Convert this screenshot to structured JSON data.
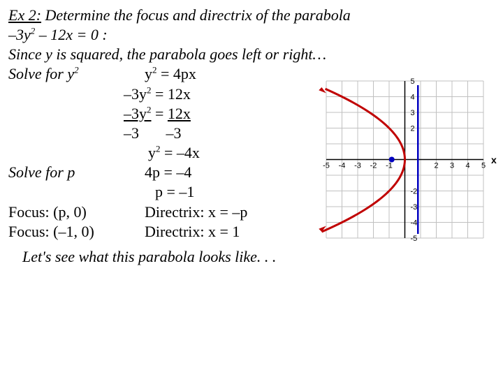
{
  "title_prefix": "Ex 2:",
  "title_rest": "  Determine the focus and directrix of the parabola",
  "eq_given": "–3y² – 12x = 0 :",
  "since_line": "Since y is squared, the parabola goes left or right…",
  "solve_y2": "Solve for y²",
  "std_form": "y² = 4px",
  "step1": "–3y² = 12x",
  "step2_top_left": "–3y²",
  "step2_top_right": "12x",
  "step2_bot_left": "–3",
  "step2_bot_right": "–3",
  "step3": "y² = –4x",
  "solve_p": "Solve for p",
  "p_eq1": "4p = –4",
  "p_eq2": "p = –1",
  "focus_label1": "Focus:  (p, 0)",
  "focus_label2": "Focus:  (–1, 0)",
  "directrix_label1": "Directrix:  x = –p",
  "directrix_label2": "Directrix:  x = 1",
  "closing": "Let's see  what this parabola looks like. . .",
  "graph": {
    "xmin": -5,
    "xmax": 5,
    "ymin": -5,
    "ymax": 5,
    "grid_color": "#c0c0c0",
    "axis_color": "#000000",
    "parabola_color": "#c00000",
    "directrix_color": "#0000c0",
    "focus_point": [
      -1,
      0
    ],
    "directrix_x": 1,
    "tick_values_pos": [
      2,
      3,
      4,
      5
    ],
    "tick_values_neg": [
      -5,
      -4,
      -3,
      -2,
      -1
    ],
    "tick_values_y_pos": [
      2,
      3,
      4,
      5
    ],
    "tick_values_y_neg": [
      -2,
      -3,
      -4,
      -5
    ]
  }
}
